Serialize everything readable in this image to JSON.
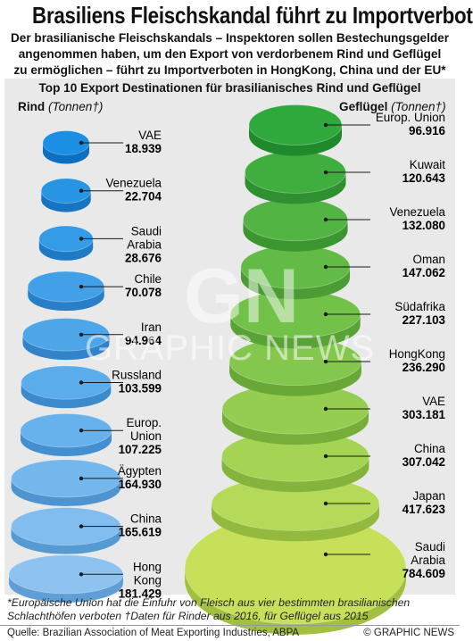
{
  "header": {
    "title": "Brasiliens Fleischskandal führt zu Importverbot",
    "subtitle_lines": [
      "Der brasilianische Fleischskandals – Inspektoren sollen Bestechungsgelder",
      "angenommen haben, um den Export von verdorbenem Rind und Geflügel",
      "zu ermöglichen – führt zu Importverboten in HongKong, China und der EU*"
    ]
  },
  "chart_data": [
    {
      "type": "bar",
      "title": "Top 10 Export Destinationen für brasilianisches Rind und Geflügel",
      "panel_label": "Rind",
      "unit_label": "(Tonnen†)",
      "categories": [
        "VAE",
        "Venezuela",
        "Saudi Arabia",
        "Chile",
        "Iran",
        "Russland",
        "Europ. Union",
        "Ägypten",
        "China",
        "Hong Kong"
      ],
      "label_lines": [
        [
          "VAE"
        ],
        [
          "Venezuela"
        ],
        [
          "Saudi",
          "Arabia"
        ],
        [
          "Chile"
        ],
        [
          "Iran"
        ],
        [
          "Russland"
        ],
        [
          "Europ.",
          "Union"
        ],
        [
          "Ägypten"
        ],
        [
          "China"
        ],
        [
          "Hong",
          "Kong"
        ]
      ],
      "value_labels": [
        "18.939",
        "22.704",
        "28.676",
        "70.078",
        "94.964",
        "103.599",
        "107.225",
        "164.930",
        "165.619",
        "181.429"
      ],
      "values": [
        18939,
        22704,
        28676,
        70078,
        94964,
        103599,
        107225,
        164930,
        165619,
        181429
      ],
      "colors": {
        "top": [
          "#1a8fe3",
          "#8ec3f0"
        ],
        "side": [
          "#0d6fc0",
          "#5f9fd6"
        ]
      }
    },
    {
      "type": "bar",
      "panel_label": "Geflügel",
      "unit_label": "(Tonnen†)",
      "categories": [
        "Europ. Union",
        "Kuwait",
        "Venezuela",
        "Oman",
        "Südafrika",
        "HongKong",
        "VAE",
        "China",
        "Japan",
        "Saudi Arabia"
      ],
      "label_lines": [
        [
          "Europ. Union"
        ],
        [
          "Kuwait"
        ],
        [
          "Venezuela"
        ],
        [
          "Oman"
        ],
        [
          "Südafrika"
        ],
        [
          "HongKong"
        ],
        [
          "VAE"
        ],
        [
          "China"
        ],
        [
          "Japan"
        ],
        [
          "Saudi",
          "Arabia"
        ]
      ],
      "value_labels": [
        "96.916",
        "120.643",
        "132.080",
        "147.062",
        "227.103",
        "236.290",
        "303.181",
        "307.042",
        "417.623",
        "784.609"
      ],
      "values": [
        96916,
        120643,
        132080,
        147062,
        227103,
        236290,
        303181,
        307042,
        417623,
        784609
      ],
      "colors": {
        "top": [
          "#2fa83c",
          "#c6e05a"
        ],
        "side": [
          "#1f8a2c",
          "#a2c040"
        ]
      }
    }
  ],
  "watermark": "GRAPHIC NEWS",
  "footnotes": [
    "*Europäische Union hat die Einfuhr von Fleisch aus vier bestimmten brasilianischen",
    "Schlachthöfen verboten    †Daten für Rinder aus 2016, für Geflügel aus 2015"
  ],
  "footer": {
    "source": "Quelle: Brazilian Association of Meat Exporting Industries, ABPA",
    "credit": "© GRAPHIC NEWS"
  }
}
